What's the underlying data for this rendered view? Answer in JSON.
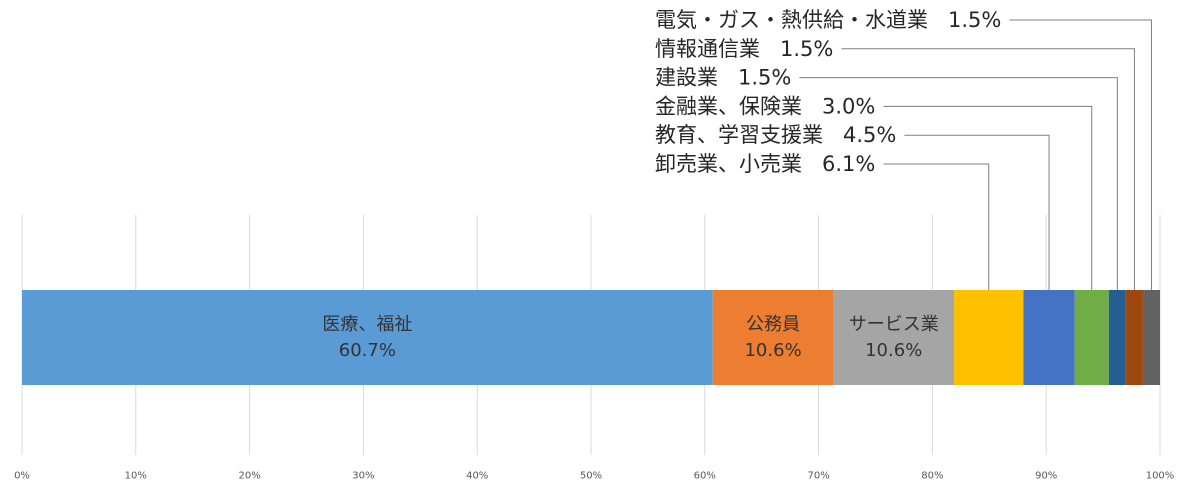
{
  "chart_data": {
    "type": "bar",
    "orientation": "horizontal",
    "stacking": "percent",
    "xlim": [
      0,
      100
    ],
    "x_ticks": [
      0,
      10,
      20,
      30,
      40,
      50,
      60,
      70,
      80,
      90,
      100
    ],
    "x_tick_labels": [
      "0%",
      "10%",
      "20%",
      "30%",
      "40%",
      "50%",
      "60%",
      "70%",
      "80%",
      "90%",
      "100%"
    ],
    "grid": "vertical",
    "legend": "none",
    "series": [
      {
        "name": "医療、福祉",
        "values": [
          60.7
        ],
        "data_label": "60.7%",
        "color": "#5B9BD5",
        "label_position": "inside"
      },
      {
        "name": "公務員",
        "values": [
          10.6
        ],
        "data_label": "10.6%",
        "color": "#ED7D31",
        "label_position": "inside"
      },
      {
        "name": "サービス業",
        "values": [
          10.6
        ],
        "data_label": "10.6%",
        "color": "#A5A5A5",
        "label_position": "inside"
      },
      {
        "name": "卸売業、小売業",
        "values": [
          6.1
        ],
        "data_label": "6.1%",
        "color": "#FFC000",
        "label_position": "callout"
      },
      {
        "name": "教育、学習支援業",
        "values": [
          4.5
        ],
        "data_label": "4.5%",
        "color": "#4472C4",
        "label_position": "callout"
      },
      {
        "name": "金融業、保険業",
        "values": [
          3.0
        ],
        "data_label": "3.0%",
        "color": "#70AD47",
        "label_position": "callout"
      },
      {
        "name": "建設業",
        "values": [
          1.5
        ],
        "data_label": "1.5%",
        "color": "#255E91",
        "label_position": "callout"
      },
      {
        "name": "情報通信業",
        "values": [
          1.5
        ],
        "data_label": "1.5%",
        "color": "#9E480E",
        "label_position": "callout"
      },
      {
        "name": "電気・ガス・熱供給・水道業",
        "values": [
          1.5
        ],
        "data_label": "1.5%",
        "color": "#636363",
        "label_position": "callout"
      }
    ]
  }
}
